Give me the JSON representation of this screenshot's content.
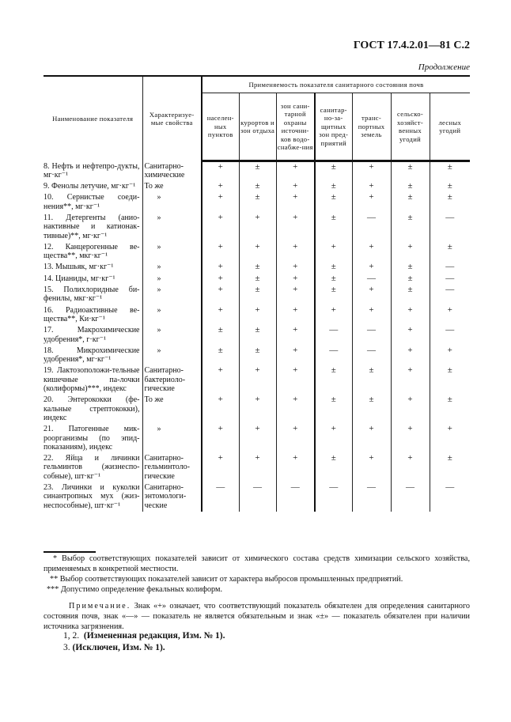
{
  "header": {
    "title": "ГОСТ 17.4.2.01—81 С.2",
    "continuation": "Продолжение"
  },
  "table": {
    "col_name": "Наименование показателя",
    "col_props": "Характеризуе-мые свойства",
    "group_header": "Применяемость показателя санитарного состояния почв",
    "sub_columns": [
      "населен-ных пунктов",
      "курортов и зон отдыха",
      "зон сани-тарной охраны источни-ков водо-снабже-ния",
      "санитар-но-за-щитных зон пред-приятий",
      "транс-портных земель",
      "сельско-хозяйст-венных угодий",
      "лесных угодий"
    ],
    "rows": [
      {
        "name": "8. Нефть и нефтепро-дукты, мг·кг⁻¹",
        "props": "Санитарно-химические",
        "values": [
          "+",
          "±",
          "+",
          "±",
          "+",
          "±",
          "±"
        ]
      },
      {
        "name": "9. Фенолы летучие, мг·кг⁻¹",
        "props": "То же",
        "values": [
          "+",
          "±",
          "+",
          "±",
          "+",
          "±",
          "±"
        ]
      },
      {
        "name": "10. Сернистые соеди-нения**, мг·кг⁻¹",
        "props": "»",
        "values": [
          "+",
          "±",
          "+",
          "±",
          "+",
          "±",
          "±"
        ]
      },
      {
        "name": "11. Детергенты (анио-нактивные и катионак-тивные)**, мг·кг⁻¹",
        "props": "»",
        "values": [
          "+",
          "+",
          "+",
          "±",
          "—",
          "±",
          "—"
        ]
      },
      {
        "name": "12. Канцерогенные ве-щества**, мкг·кг⁻¹",
        "props": "»",
        "values": [
          "+",
          "+",
          "+",
          "+",
          "+",
          "+",
          "±"
        ]
      },
      {
        "name": "13. Мышьяк, мг·кг⁻¹",
        "props": "»",
        "values": [
          "+",
          "±",
          "+",
          "±",
          "+",
          "±",
          "—"
        ]
      },
      {
        "name": "14. Цианиды, мг·кг⁻¹",
        "props": "»",
        "values": [
          "+",
          "±",
          "+",
          "±",
          "—",
          "±",
          "—"
        ]
      },
      {
        "name": "15. Полихлоридные би-фенилы, мкг·кг⁻¹",
        "props": "»",
        "values": [
          "+",
          "±",
          "+",
          "±",
          "+",
          "±",
          "—"
        ]
      },
      {
        "name": "16. Радиоактивные ве-щества**, Ки·кг⁻¹",
        "props": "»",
        "values": [
          "+",
          "+",
          "+",
          "+",
          "+",
          "+",
          "+"
        ]
      },
      {
        "name": "17. Макрохимические удобрения*, г·кг⁻¹",
        "props": "»",
        "values": [
          "±",
          "±",
          "+",
          "—",
          "—",
          "+",
          "—"
        ]
      },
      {
        "name": "18. Микрохимические удобрения*, мг·кг⁻¹",
        "props": "»",
        "values": [
          "±",
          "±",
          "+",
          "—",
          "—",
          "+",
          "+"
        ]
      },
      {
        "name": "19. Лактозоположи-тельные кишечные па-лочки (колиформы)***, индекс",
        "props": "Санитарно-бактериоло-гические",
        "values": [
          "+",
          "+",
          "+",
          "±",
          "±",
          "+",
          "±"
        ]
      },
      {
        "name": "20. Энтерококки (фе-кальные стрептококки), индекс",
        "props": "То же",
        "values": [
          "+",
          "+",
          "+",
          "±",
          "±",
          "+",
          "±"
        ]
      },
      {
        "name": "21. Патогенные мик-роорганизмы (по эпид-показаниям), индекс",
        "props": "»",
        "values": [
          "+",
          "+",
          "+",
          "+",
          "+",
          "+",
          "+"
        ]
      },
      {
        "name": "22. Яйца и личинки гельминтов (жизнеспо-собные), шт·кг⁻¹",
        "props": "Санитарно-гельминтоло-гические",
        "values": [
          "+",
          "+",
          "+",
          "±",
          "+",
          "+",
          "±"
        ]
      },
      {
        "name": "23. Личинки и куколки синантропных мух (жиз-неспособные), шт·кг⁻¹",
        "props": "Санитарно-энтомологи-ческие",
        "values": [
          "—",
          "—",
          "—",
          "—",
          "—",
          "—",
          "—"
        ]
      }
    ]
  },
  "footnotes": [
    "* Выбор соответствующих показателей зависит от химического состава средств химизации сельского хозяйства, применяемых в конкретной местности.",
    "** Выбор соответствующих показателей зависит от характера выбросов промышленных предприятий.",
    "*** Допустимо определение фекальных колиформ."
  ],
  "note": {
    "label": "Примечание.",
    "text": "Знак «+» означает, что соответствующий показатель обязателен для определения санитарного состояния почв, знак «—» — показатель не является обязательным и знак «±» — показатель обязателен при наличии источника загрязнения."
  },
  "changes": [
    {
      "num": "1, 2.",
      "text": "(Измененная редакция, Изм. № 1)."
    },
    {
      "num": "3.",
      "text": "(Исключен, Изм. № 1)."
    }
  ]
}
